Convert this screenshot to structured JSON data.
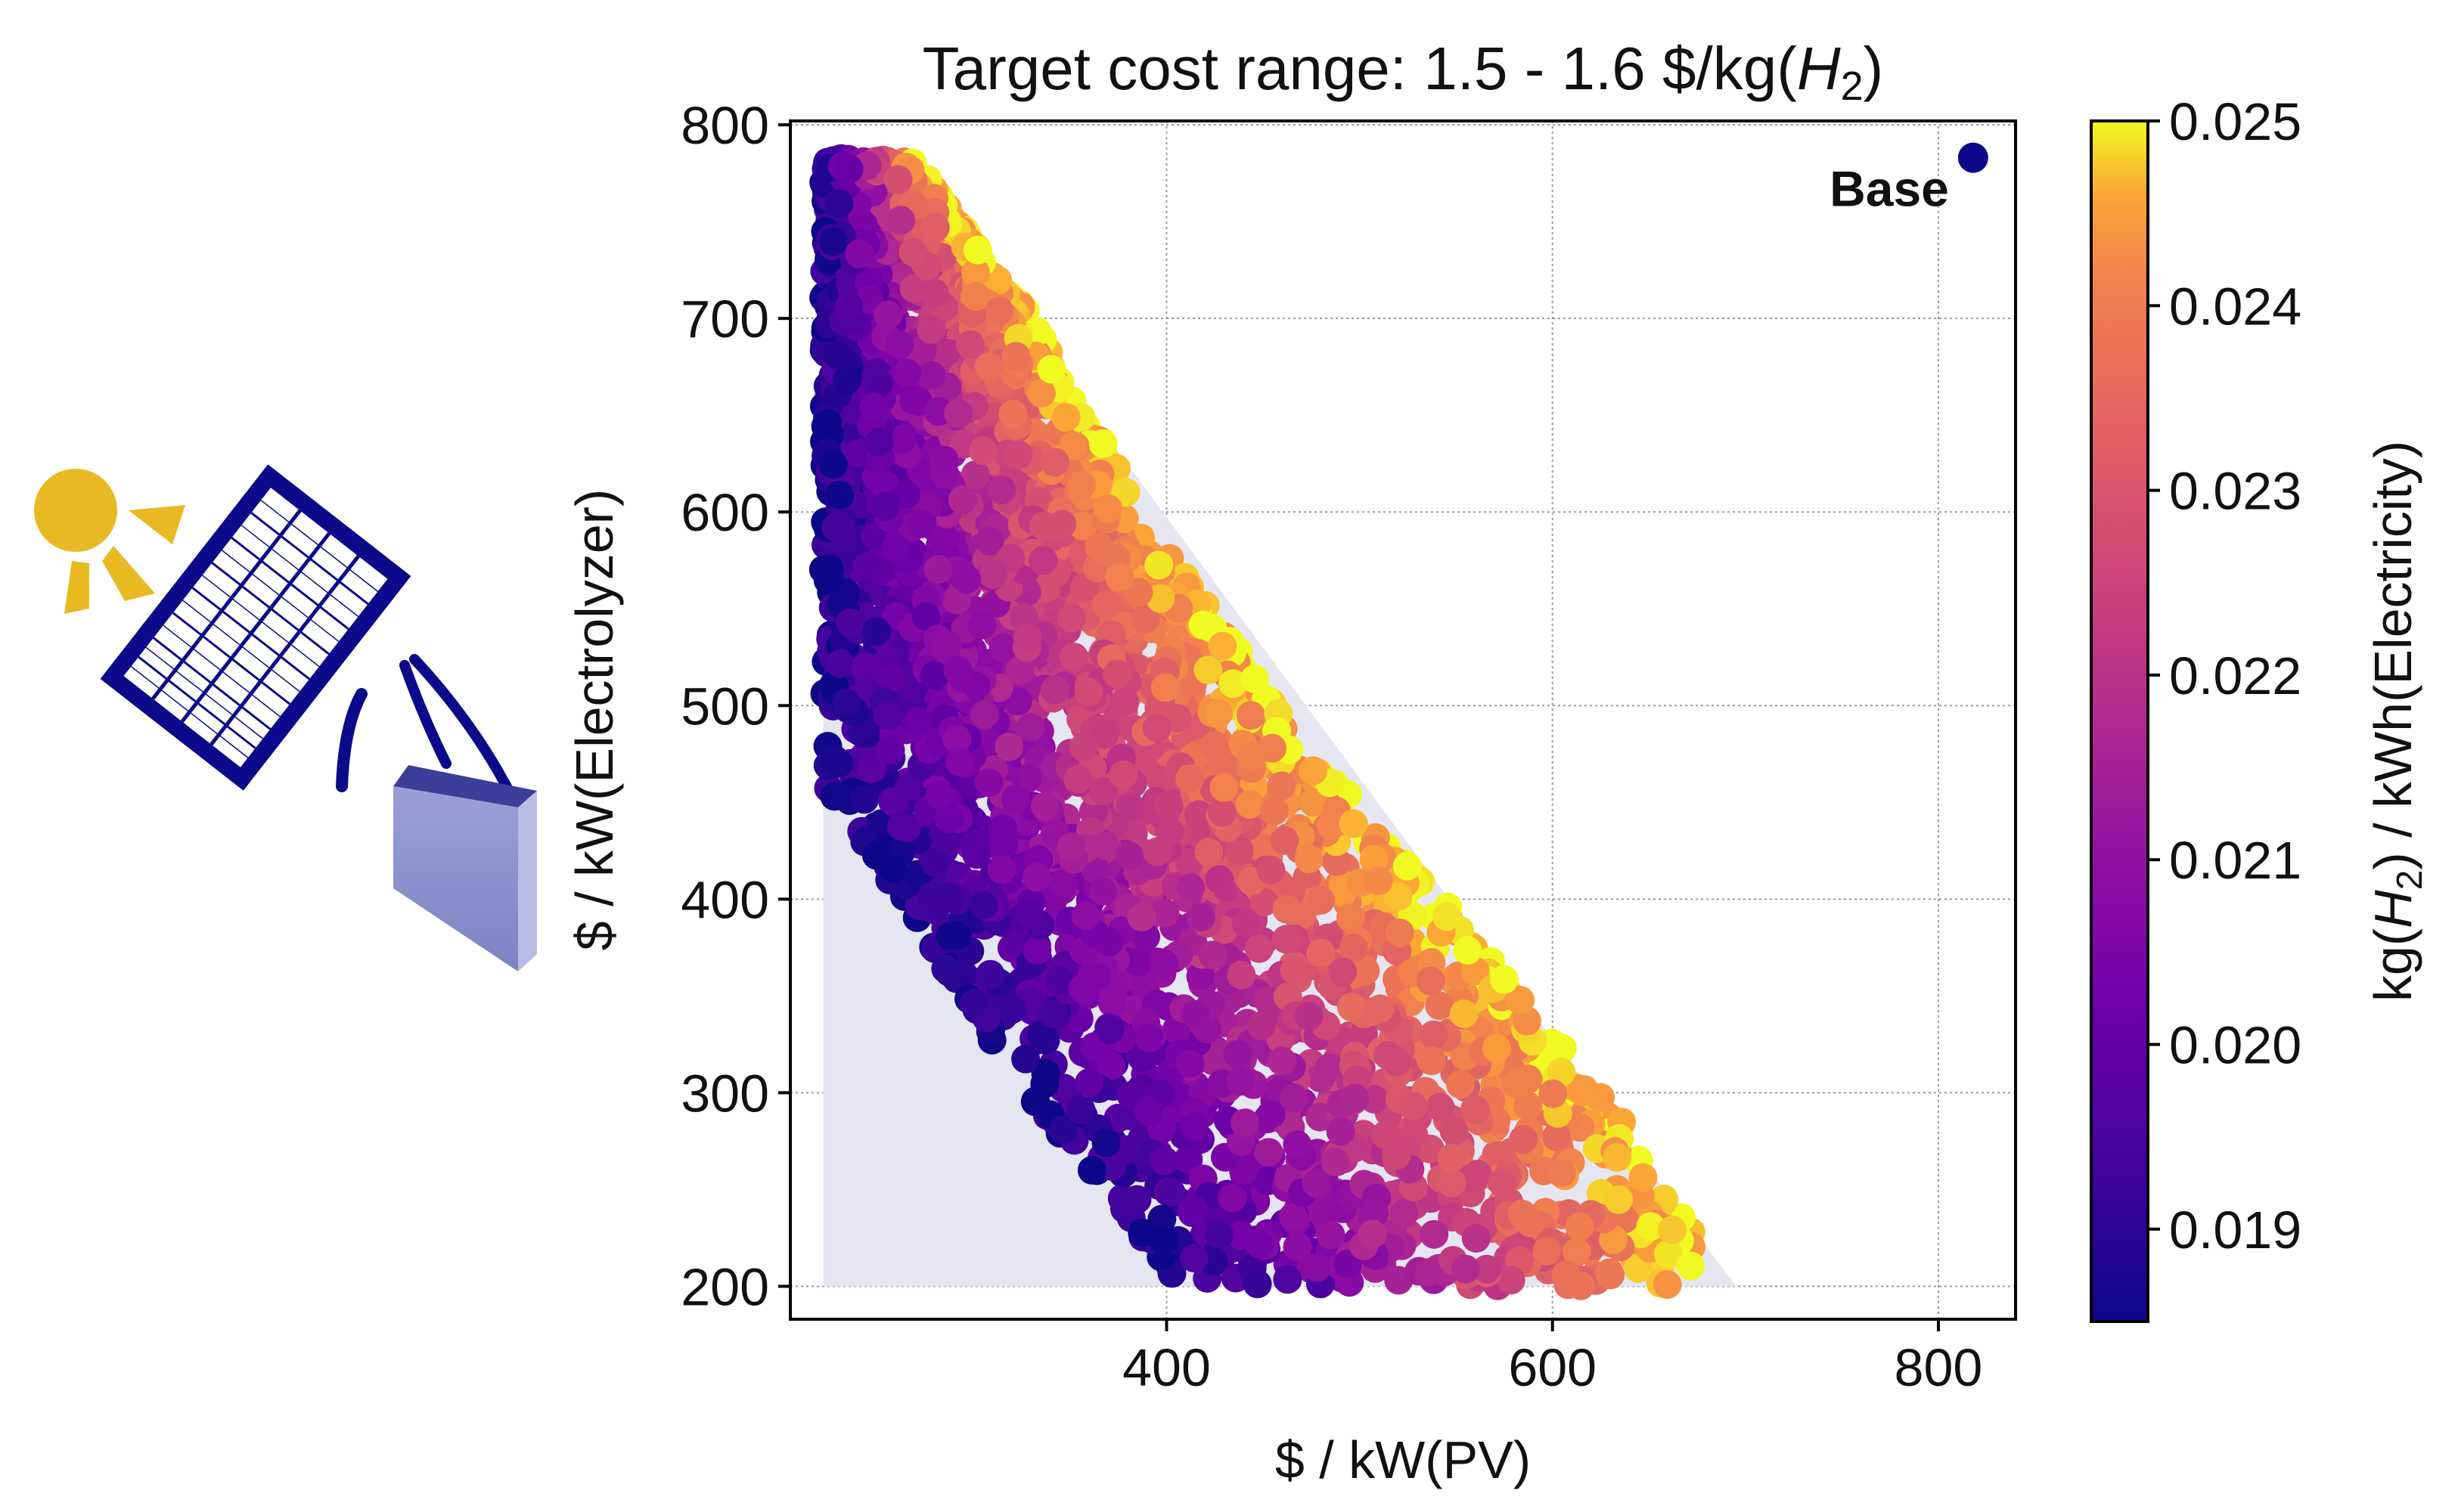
{
  "chart_data": {
    "type": "scatter",
    "title": "Target cost range: 1.5 - 1.6 $/kg(",
    "title_math": "H",
    "title_sub": "2",
    "title_end": ")",
    "xlabel": "$ / kW(PV)",
    "ylabel": "$ / kW(Electrolyzer)",
    "xlim": [
      205,
      840
    ],
    "ylim": [
      183,
      802
    ],
    "x_ticks": [
      "400",
      "600",
      "800"
    ],
    "y_ticks": [
      "200",
      "300",
      "400",
      "500",
      "600",
      "700",
      "800"
    ],
    "grid": true,
    "grid_style": "dotted",
    "region": {
      "color": "#e6e6f2",
      "vertices": [
        [
          222,
          200
        ],
        [
          222,
          783
        ],
        [
          262,
          783
        ],
        [
          695,
          200
        ]
      ]
    },
    "cloud_edges": {
      "left": [
        [
          222,
          780
        ],
        [
          222,
          460
        ],
        [
          250,
          420
        ],
        [
          300,
          340
        ],
        [
          350,
          270
        ],
        [
          400,
          205
        ],
        [
          440,
          200
        ]
      ],
      "right": [
        [
          270,
          780
        ],
        [
          330,
          700
        ],
        [
          400,
          580
        ],
        [
          480,
          470
        ],
        [
          560,
          380
        ],
        [
          640,
          280
        ],
        [
          680,
          215
        ],
        [
          660,
          200
        ]
      ]
    },
    "sample_count": 3200,
    "series": [
      {
        "name": "Base",
        "type": "marker",
        "x": 818,
        "y": 783,
        "color": "#0d0887"
      }
    ],
    "colorbar": {
      "label_prefix": "kg(",
      "label_math": "H",
      "label_sub": "2",
      "label_suffix": ") / kWh(Electricity)",
      "colormap": "plasma",
      "min": 0.0185,
      "max": 0.025,
      "ticks": [
        "0.019",
        "0.020",
        "0.021",
        "0.022",
        "0.023",
        "0.024",
        "0.025"
      ]
    },
    "annotation": "Base"
  },
  "icon": {
    "name": "solar-panel-with-sun-and-battery-icon",
    "sun_color": "#e8b923",
    "panel_color": "#0a0a8a",
    "battery_color": "#8a90cc"
  }
}
